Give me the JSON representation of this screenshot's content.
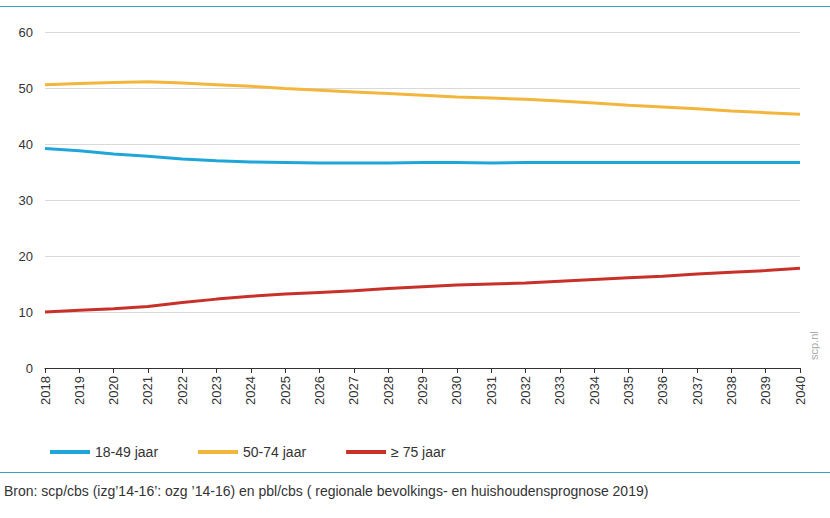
{
  "chart_data": {
    "type": "line",
    "categories": [
      "2018",
      "2019",
      "2020",
      "2021",
      "2022",
      "2023",
      "2024",
      "2025",
      "2026",
      "2027",
      "2028",
      "2029",
      "2030",
      "2031",
      "2032",
      "2033",
      "2034",
      "2035",
      "2036",
      "2037",
      "2038",
      "2039",
      "2040"
    ],
    "series": [
      {
        "name": "18-49 jaar",
        "color": "#1fa6d9",
        "values": [
          39.2,
          38.8,
          38.2,
          37.8,
          37.3,
          37.0,
          36.8,
          36.7,
          36.6,
          36.6,
          36.6,
          36.7,
          36.7,
          36.6,
          36.7,
          36.7,
          36.7,
          36.7,
          36.7,
          36.7,
          36.7,
          36.7,
          36.7
        ]
      },
      {
        "name": "50-74 jaar",
        "color": "#f2b63c",
        "values": [
          50.6,
          50.8,
          51.0,
          51.1,
          50.9,
          50.6,
          50.3,
          49.9,
          49.6,
          49.3,
          49.0,
          48.7,
          48.4,
          48.2,
          48.0,
          47.7,
          47.3,
          46.9,
          46.6,
          46.3,
          45.9,
          45.6,
          45.3
        ]
      },
      {
        "name": "≥ 75 jaar",
        "color": "#c8312a",
        "values": [
          10.0,
          10.3,
          10.6,
          11.0,
          11.7,
          12.3,
          12.8,
          13.2,
          13.5,
          13.8,
          14.2,
          14.5,
          14.8,
          15.0,
          15.2,
          15.5,
          15.8,
          16.1,
          16.4,
          16.8,
          17.1,
          17.4,
          17.8
        ]
      }
    ],
    "ylim": [
      0,
      60
    ],
    "yticks": [
      0,
      10,
      20,
      30,
      40,
      50,
      60
    ],
    "grid": true,
    "legend": "bottom-left",
    "annotations": [
      "scp.nl"
    ],
    "source": "Bron: scp/cbs (izg’14-16’: ozg ’14-16) en pbl/cbs ( regionale bevolkings- en huishoudensprognose 2019)"
  }
}
